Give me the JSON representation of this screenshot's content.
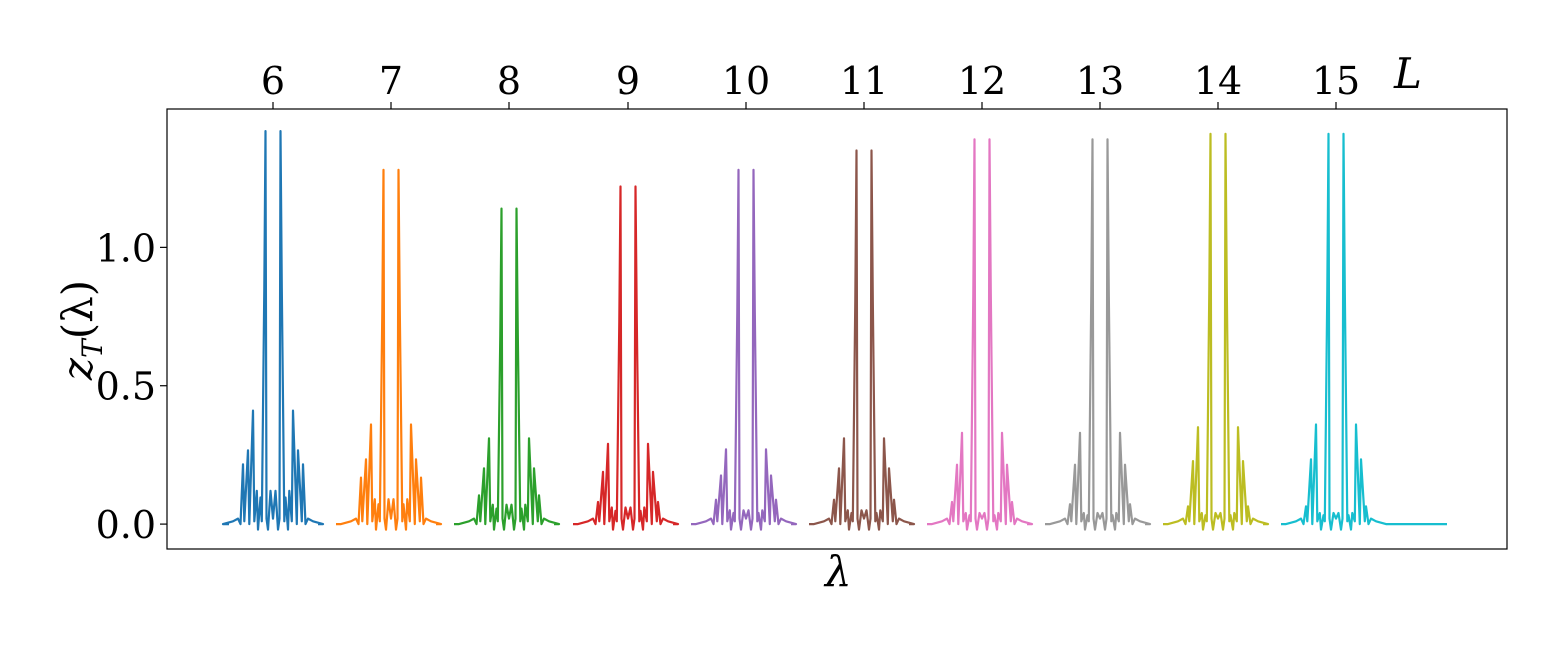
{
  "chart_data": {
    "type": "line",
    "xlabel": "λ",
    "ylabel": "z_T(λ)",
    "ylabel_main": "z",
    "ylabel_sub": "T",
    "ylabel_arg": "(λ)",
    "top_axis_label": "L",
    "ylim": [
      -0.09,
      1.5
    ],
    "yticks": [
      0.0,
      0.5,
      1.0
    ],
    "ytick_labels": [
      "0.0",
      "0.5",
      "1.0"
    ],
    "grid": false,
    "legend": "none",
    "series": [
      {
        "L": "6",
        "color": "#1f77b4",
        "main_peak": 1.42,
        "side_peaks": [
          0.41,
          0.27,
          0.12
        ]
      },
      {
        "L": "7",
        "color": "#ff7f0e",
        "main_peak": 1.28,
        "side_peaks": [
          0.36,
          0.21,
          0.09
        ]
      },
      {
        "L": "8",
        "color": "#2ca02c",
        "main_peak": 1.14,
        "side_peaks": [
          0.31,
          0.13,
          0.07
        ]
      },
      {
        "L": "9",
        "color": "#d62728",
        "main_peak": 1.22,
        "side_peaks": [
          0.29,
          0.1,
          0.06
        ]
      },
      {
        "L": "10",
        "color": "#9467bd",
        "main_peak": 1.28,
        "side_peaks": [
          0.27,
          0.11,
          0.05
        ]
      },
      {
        "L": "11",
        "color": "#8c564b",
        "main_peak": 1.35,
        "side_peaks": [
          0.31,
          0.11,
          0.05
        ]
      },
      {
        "L": "12",
        "color": "#e377c2",
        "main_peak": 1.39,
        "side_peaks": [
          0.33,
          0.1,
          0.04
        ]
      },
      {
        "L": "13",
        "color": "#999999",
        "main_peak": 1.39,
        "side_peaks": [
          0.33,
          0.09,
          0.04
        ]
      },
      {
        "L": "14",
        "color": "#bcbd22",
        "main_peak": 1.41,
        "side_peaks": [
          0.35,
          0.08,
          0.04
        ]
      },
      {
        "L": "15",
        "color": "#17becf",
        "main_peak": 1.41,
        "side_peaks": [
          0.36,
          0.08,
          0.04
        ]
      }
    ]
  }
}
